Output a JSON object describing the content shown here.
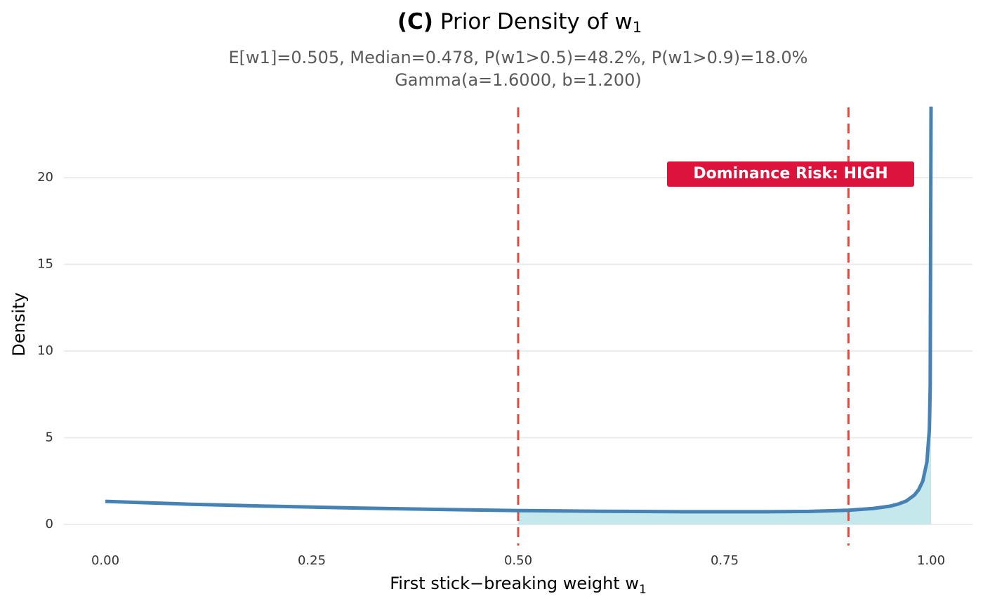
{
  "chart_data": {
    "type": "line",
    "title_prefix": "(C)",
    "title": "Prior Density of w",
    "title_subscript": "1",
    "subtitle": [
      "E[w1]=0.505,  Median=0.478,  P(w1>0.5)=48.2%,  P(w1>0.9)=18.0%",
      "Gamma(a=1.6000, b=1.200)"
    ],
    "x_label": "First stick−breaking weight w",
    "x_label_subscript": "1",
    "y_label": "Density",
    "annotation": "Dominance Risk: HIGH",
    "annotation_color": "#dc143c",
    "x": [
      0,
      0.1,
      0.2,
      0.25,
      0.3,
      0.4,
      0.5,
      0.6,
      0.7,
      0.75,
      0.8,
      0.85,
      0.9,
      0.93,
      0.95,
      0.96,
      0.97,
      0.98,
      0.985,
      0.99,
      0.995,
      0.998,
      0.999,
      1.0
    ],
    "series": [
      {
        "name": "Density",
        "color": "#4682b4",
        "values": [
          1.33,
          1.17,
          1.05,
          1.0,
          0.95,
          0.87,
          0.8,
          0.76,
          0.73,
          0.73,
          0.73,
          0.75,
          0.82,
          0.92,
          1.05,
          1.17,
          1.35,
          1.7,
          2.0,
          2.5,
          3.6,
          5.5,
          8.0,
          24.1
        ]
      }
    ],
    "shade_from": 0.5,
    "shade_color": "#c5e8ec",
    "vlines": [
      0.5,
      0.9
    ],
    "vline_color": "#e04a3a",
    "xlim": [
      -0.05,
      1.05
    ],
    "ylim": [
      -1.2,
      24.2
    ],
    "xticks": [
      {
        "value": 0,
        "label": "0.00"
      },
      {
        "value": 0.25,
        "label": "0.25"
      },
      {
        "value": 0.5,
        "label": "0.50"
      },
      {
        "value": 0.75,
        "label": "0.75"
      },
      {
        "value": 1,
        "label": "1.00"
      }
    ],
    "yticks": [
      0,
      5,
      10,
      15,
      20
    ],
    "grid": true
  }
}
